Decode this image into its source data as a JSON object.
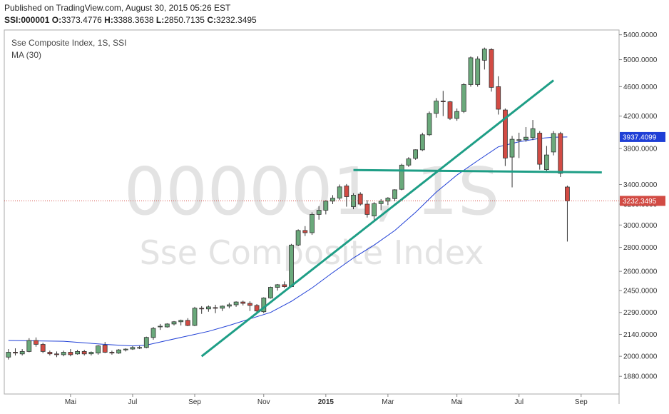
{
  "header": {
    "published": "Published on TradingView.com, August 30, 2015 05:26 EST",
    "symbol": "SSI:000001",
    "o_label": "O:",
    "o_value": "3373.4776",
    "h_label": "H:",
    "h_value": "3388.3638",
    "l_label": "L:",
    "l_value": "2850.7135",
    "c_label": "C:",
    "c_value": "3232.3495"
  },
  "legend": {
    "series": "Sse Composite Index, 1S, SSI",
    "ma": "MA (30)"
  },
  "watermark": {
    "symbol": "000001, 1S",
    "name": "Sse Composite Index"
  },
  "colors": {
    "up": "#6aa97b",
    "down": "#d24b44",
    "ma": "#1f3fd6",
    "trendline": "#1e9e86",
    "last_price_line": "#d24b44",
    "ma_badge": "#1f3fd6",
    "price_badge": "#d24b44"
  },
  "chart_data": {
    "type": "candlestick",
    "title": "Sse Composite Index, 1S, SSI",
    "yscale": "log",
    "ylim": [
      1780,
      5480
    ],
    "y_ticks": [
      1880,
      2000,
      2140,
      2290,
      2450,
      2600,
      2800,
      3000,
      3200,
      3400,
      3800,
      4200,
      4600,
      5000,
      5400
    ],
    "y_tick_labels": [
      "1880.0000",
      "2000.0000",
      "2140.0000",
      "2290.0000",
      "2450.0000",
      "2600.0000",
      "2800.0000",
      "3000.0000",
      "3200.0000",
      "3400.0000",
      "3800.0000",
      "4200.0000",
      "4600.0000",
      "5000.0000",
      "5400.0000"
    ],
    "x_tick_labels": [
      {
        "label": "Mai",
        "week": 9,
        "bold": false
      },
      {
        "label": "Jul",
        "week": 18,
        "bold": false
      },
      {
        "label": "Sep",
        "week": 27,
        "bold": false
      },
      {
        "label": "Nov",
        "week": 37,
        "bold": false
      },
      {
        "label": "2015",
        "week": 46,
        "bold": true
      },
      {
        "label": "Mar",
        "week": 55,
        "bold": false
      },
      {
        "label": "Mai",
        "week": 65,
        "bold": false
      },
      {
        "label": "Jul",
        "week": 74,
        "bold": false
      },
      {
        "label": "Sep",
        "week": 83,
        "bold": false
      }
    ],
    "x_extent_weeks": [
      -0.6,
      88.5
    ],
    "candles": [
      {
        "o": 1995,
        "h": 2045,
        "l": 1980,
        "c": 2025
      },
      {
        "o": 2025,
        "h": 2050,
        "l": 2005,
        "c": 2020
      },
      {
        "o": 2015,
        "h": 2045,
        "l": 2005,
        "c": 2030
      },
      {
        "o": 2030,
        "h": 2115,
        "l": 2025,
        "c": 2100
      },
      {
        "o": 2100,
        "h": 2120,
        "l": 2060,
        "c": 2075
      },
      {
        "o": 2075,
        "h": 2085,
        "l": 2020,
        "c": 2030
      },
      {
        "o": 2025,
        "h": 2035,
        "l": 2005,
        "c": 2015
      },
      {
        "o": 2015,
        "h": 2030,
        "l": 1995,
        "c": 2010
      },
      {
        "o": 2010,
        "h": 2035,
        "l": 2000,
        "c": 2025
      },
      {
        "o": 2025,
        "h": 2045,
        "l": 2000,
        "c": 2010
      },
      {
        "o": 2015,
        "h": 2040,
        "l": 2010,
        "c": 2030
      },
      {
        "o": 2030,
        "h": 2040,
        "l": 2005,
        "c": 2015
      },
      {
        "o": 2015,
        "h": 2030,
        "l": 2005,
        "c": 2025
      },
      {
        "o": 2020,
        "h": 2070,
        "l": 2010,
        "c": 2065
      },
      {
        "o": 2070,
        "h": 2090,
        "l": 2020,
        "c": 2025
      },
      {
        "o": 2025,
        "h": 2035,
        "l": 2010,
        "c": 2020
      },
      {
        "o": 2020,
        "h": 2045,
        "l": 2015,
        "c": 2040
      },
      {
        "o": 2040,
        "h": 2050,
        "l": 2030,
        "c": 2045
      },
      {
        "o": 2045,
        "h": 2065,
        "l": 2040,
        "c": 2055
      },
      {
        "o": 2055,
        "h": 2065,
        "l": 2045,
        "c": 2055
      },
      {
        "o": 2055,
        "h": 2125,
        "l": 2050,
        "c": 2120
      },
      {
        "o": 2120,
        "h": 2190,
        "l": 2105,
        "c": 2180
      },
      {
        "o": 2190,
        "h": 2210,
        "l": 2170,
        "c": 2195
      },
      {
        "o": 2190,
        "h": 2215,
        "l": 2185,
        "c": 2210
      },
      {
        "o": 2210,
        "h": 2230,
        "l": 2200,
        "c": 2225
      },
      {
        "o": 2225,
        "h": 2240,
        "l": 2200,
        "c": 2235
      },
      {
        "o": 2235,
        "h": 2250,
        "l": 2195,
        "c": 2200
      },
      {
        "o": 2200,
        "h": 2330,
        "l": 2195,
        "c": 2320
      },
      {
        "o": 2320,
        "h": 2335,
        "l": 2280,
        "c": 2315
      },
      {
        "o": 2315,
        "h": 2340,
        "l": 2295,
        "c": 2330
      },
      {
        "o": 2325,
        "h": 2345,
        "l": 2285,
        "c": 2320
      },
      {
        "o": 2320,
        "h": 2340,
        "l": 2300,
        "c": 2335
      },
      {
        "o": 2335,
        "h": 2360,
        "l": 2320,
        "c": 2345
      },
      {
        "o": 2345,
        "h": 2370,
        "l": 2330,
        "c": 2365
      },
      {
        "o": 2365,
        "h": 2375,
        "l": 2340,
        "c": 2355
      },
      {
        "o": 2355,
        "h": 2370,
        "l": 2300,
        "c": 2340
      },
      {
        "o": 2340,
        "h": 2350,
        "l": 2290,
        "c": 2300
      },
      {
        "o": 2295,
        "h": 2400,
        "l": 2285,
        "c": 2395
      },
      {
        "o": 2395,
        "h": 2480,
        "l": 2390,
        "c": 2475
      },
      {
        "o": 2475,
        "h": 2500,
        "l": 2450,
        "c": 2495
      },
      {
        "o": 2495,
        "h": 2520,
        "l": 2470,
        "c": 2480
      },
      {
        "o": 2480,
        "h": 2830,
        "l": 2475,
        "c": 2820
      },
      {
        "o": 2820,
        "h": 2960,
        "l": 2810,
        "c": 2950
      },
      {
        "o": 2950,
        "h": 2990,
        "l": 2900,
        "c": 2930
      },
      {
        "o": 2930,
        "h": 3120,
        "l": 2910,
        "c": 3100
      },
      {
        "o": 3100,
        "h": 3180,
        "l": 3050,
        "c": 3140
      },
      {
        "o": 3140,
        "h": 3240,
        "l": 3100,
        "c": 3230
      },
      {
        "o": 3230,
        "h": 3290,
        "l": 3200,
        "c": 3260
      },
      {
        "o": 3260,
        "h": 3400,
        "l": 3240,
        "c": 3375
      },
      {
        "o": 3385,
        "h": 3405,
        "l": 3175,
        "c": 3275
      },
      {
        "o": 3175,
        "h": 3310,
        "l": 3150,
        "c": 3290
      },
      {
        "o": 3300,
        "h": 3320,
        "l": 3185,
        "c": 3200
      },
      {
        "o": 3200,
        "h": 3240,
        "l": 3070,
        "c": 3100
      },
      {
        "o": 3085,
        "h": 3220,
        "l": 3050,
        "c": 3205
      },
      {
        "o": 3205,
        "h": 3250,
        "l": 3140,
        "c": 3230
      },
      {
        "o": 3230,
        "h": 3270,
        "l": 3190,
        "c": 3260
      },
      {
        "o": 3255,
        "h": 3350,
        "l": 3230,
        "c": 3345
      },
      {
        "o": 3350,
        "h": 3625,
        "l": 3340,
        "c": 3610
      },
      {
        "o": 3610,
        "h": 3700,
        "l": 3590,
        "c": 3680
      },
      {
        "o": 3685,
        "h": 3790,
        "l": 3670,
        "c": 3785
      },
      {
        "o": 3785,
        "h": 3990,
        "l": 3770,
        "c": 3965
      },
      {
        "o": 3965,
        "h": 4260,
        "l": 3950,
        "c": 4235
      },
      {
        "o": 4235,
        "h": 4440,
        "l": 4180,
        "c": 4400
      },
      {
        "o": 4400,
        "h": 4540,
        "l": 4200,
        "c": 4390
      },
      {
        "o": 4390,
        "h": 4400,
        "l": 4150,
        "c": 4170
      },
      {
        "o": 4170,
        "h": 4300,
        "l": 4140,
        "c": 4260
      },
      {
        "o": 4260,
        "h": 4650,
        "l": 4240,
        "c": 4630
      },
      {
        "o": 4630,
        "h": 5050,
        "l": 4600,
        "c": 5030
      },
      {
        "o": 4630,
        "h": 5050,
        "l": 4600,
        "c": 5010
      },
      {
        "o": 4990,
        "h": 5190,
        "l": 4850,
        "c": 5165
      },
      {
        "o": 5160,
        "h": 5180,
        "l": 4530,
        "c": 4590
      },
      {
        "o": 4600,
        "h": 4750,
        "l": 4220,
        "c": 4290
      },
      {
        "o": 4280,
        "h": 4300,
        "l": 3600,
        "c": 3690
      },
      {
        "o": 3700,
        "h": 3950,
        "l": 3370,
        "c": 3910
      },
      {
        "o": 3905,
        "h": 3990,
        "l": 3690,
        "c": 3905
      },
      {
        "o": 3905,
        "h": 4060,
        "l": 3880,
        "c": 3935
      },
      {
        "o": 3930,
        "h": 4150,
        "l": 3900,
        "c": 4040
      },
      {
        "o": 3985,
        "h": 4010,
        "l": 3560,
        "c": 3620
      },
      {
        "o": 3560,
        "h": 3830,
        "l": 3540,
        "c": 3725
      },
      {
        "o": 3760,
        "h": 4010,
        "l": 3720,
        "c": 3980
      },
      {
        "o": 3980,
        "h": 4000,
        "l": 3480,
        "c": 3520
      },
      {
        "o": 3373.48,
        "h": 3388.36,
        "l": 2850.71,
        "c": 3232.35
      }
    ],
    "ma_30": [
      {
        "w": 0,
        "v": 2100
      },
      {
        "w": 8,
        "v": 2095
      },
      {
        "w": 14,
        "v": 2075
      },
      {
        "w": 18,
        "v": 2065
      },
      {
        "w": 20,
        "v": 2070
      },
      {
        "w": 23,
        "v": 2100
      },
      {
        "w": 26,
        "v": 2130
      },
      {
        "w": 29,
        "v": 2160
      },
      {
        "w": 32,
        "v": 2200
      },
      {
        "w": 35,
        "v": 2245
      },
      {
        "w": 38,
        "v": 2290
      },
      {
        "w": 41,
        "v": 2370
      },
      {
        "w": 44,
        "v": 2470
      },
      {
        "w": 47,
        "v": 2590
      },
      {
        "w": 50,
        "v": 2710
      },
      {
        "w": 53,
        "v": 2820
      },
      {
        "w": 56,
        "v": 2950
      },
      {
        "w": 59,
        "v": 3120
      },
      {
        "w": 62,
        "v": 3320
      },
      {
        "w": 65,
        "v": 3500
      },
      {
        "w": 68,
        "v": 3660
      },
      {
        "w": 71,
        "v": 3820
      },
      {
        "w": 74,
        "v": 3880
      },
      {
        "w": 77,
        "v": 3920
      },
      {
        "w": 79,
        "v": 3935
      },
      {
        "w": 81,
        "v": 3937.41
      }
    ],
    "trendlines": [
      {
        "name": "rising",
        "from": {
          "w": 28,
          "v": 2000
        },
        "to": {
          "w": 79,
          "v": 4690
        }
      },
      {
        "name": "horizontal",
        "from": {
          "w": 50,
          "v": 3555
        },
        "to": {
          "w": 86,
          "v": 3530
        }
      }
    ],
    "price_badges": {
      "ma_value": "3937.4099",
      "last_price": "3232.3495",
      "last_price_value": 3232.3495,
      "ma_value_num": 3937.4099
    },
    "legend_position": "top-left",
    "grid": false
  }
}
